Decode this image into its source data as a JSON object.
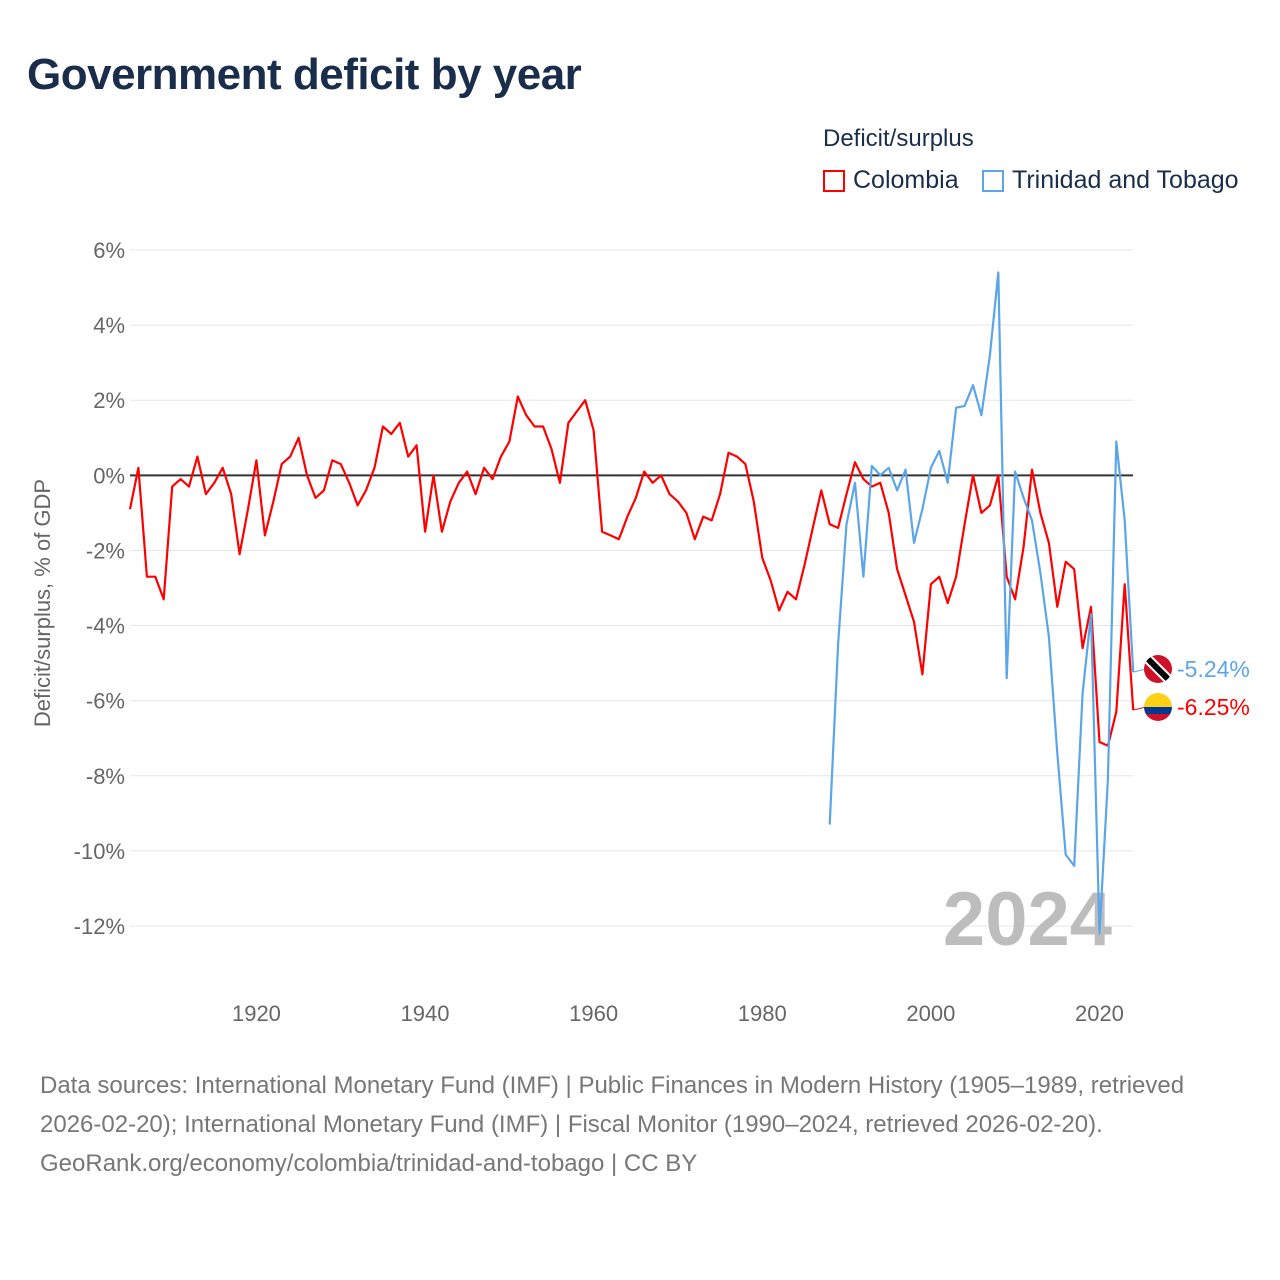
{
  "title": "Government deficit by year",
  "legend": {
    "title": "Deficit/surplus",
    "items": [
      {
        "name": "Colombia",
        "color": "#ff0000"
      },
      {
        "name": "Trinidad and Tobago",
        "color": "#5ba5e8"
      }
    ]
  },
  "chart_data": {
    "type": "line",
    "title": "Government deficit by year",
    "xlabel": "",
    "ylabel": "Deficit/surplus, % of GDP",
    "xlim": [
      1905,
      2024
    ],
    "ylim": [
      -12,
      6
    ],
    "grid": true,
    "legend_position": "top-right",
    "x_ticks": [
      1920,
      1940,
      1960,
      1980,
      2000,
      2020
    ],
    "x_tick_labels": [
      "1920",
      "1940",
      "1960",
      "1980",
      "2000",
      "2020"
    ],
    "y_ticks": [
      6,
      4,
      2,
      0,
      -2,
      -4,
      -6,
      -8,
      -10,
      -12
    ],
    "y_tick_labels": [
      "6%",
      "4%",
      "2%",
      "0%",
      "-2%",
      "-4%",
      "-6%",
      "-8%",
      "-10%",
      "-12%"
    ],
    "year_watermark": "2024",
    "series": [
      {
        "name": "Colombia",
        "color": "#ff0000",
        "start_year": 1905,
        "end_label": "-6.25%",
        "values": [
          -0.9,
          0.2,
          -2.7,
          -2.7,
          -3.3,
          -0.3,
          -0.1,
          -0.3,
          0.5,
          -0.5,
          -0.2,
          0.2,
          -0.5,
          -2.1,
          -0.9,
          0.4,
          -1.6,
          -0.7,
          0.3,
          0.5,
          1.0,
          0.0,
          -0.6,
          -0.4,
          0.4,
          0.3,
          -0.2,
          -0.8,
          -0.4,
          0.2,
          1.3,
          1.1,
          1.4,
          0.5,
          0.8,
          -1.5,
          0.0,
          -1.5,
          -0.7,
          -0.2,
          0.1,
          -0.5,
          0.2,
          -0.1,
          0.5,
          0.9,
          2.1,
          1.6,
          1.3,
          1.3,
          0.7,
          -0.2,
          1.4,
          1.7,
          2.0,
          1.2,
          -1.5,
          -1.6,
          -1.7,
          -1.1,
          -0.6,
          0.1,
          -0.2,
          0.0,
          -0.5,
          -0.7,
          -1.0,
          -1.7,
          -1.1,
          -1.2,
          -0.5,
          0.6,
          0.5,
          0.3,
          -0.7,
          -2.2,
          -2.8,
          -3.6,
          -3.1,
          -3.3,
          -2.4,
          -1.4,
          -0.4,
          -1.3,
          -1.4,
          -0.5,
          0.35,
          -0.1,
          -0.3,
          -0.2,
          -1.0,
          -2.5,
          -3.2,
          -3.9,
          -5.3,
          -2.9,
          -2.7,
          -3.4,
          -2.7,
          -1.3,
          0.0,
          -1.0,
          -0.8,
          0.0,
          -2.7,
          -3.3,
          -1.9,
          0.15,
          -1.0,
          -1.8,
          -3.5,
          -2.3,
          -2.5,
          -4.6,
          -3.5,
          -7.1,
          -7.2,
          -6.3,
          -2.9,
          -6.25
        ]
      },
      {
        "name": "Trinidad and Tobago",
        "color": "#5ba5e8",
        "start_year": 1988,
        "end_label": "-5.24%",
        "values": [
          -9.3,
          -4.5,
          -1.3,
          -0.2,
          -2.7,
          0.25,
          0.0,
          0.2,
          -0.4,
          0.15,
          -1.8,
          -0.9,
          0.2,
          0.65,
          -0.2,
          1.8,
          1.85,
          2.4,
          1.6,
          3.2,
          5.4,
          -5.4,
          0.1,
          -0.6,
          -1.2,
          -2.6,
          -4.3,
          -7.4,
          -10.1,
          -10.4,
          -5.8,
          -3.7,
          -12.2,
          -8.1,
          0.9,
          -1.2,
          -5.24
        ]
      }
    ]
  },
  "footer": {
    "sources": "Data sources: International Monetary Fund (IMF) | Public Finances in Modern History (1905–1989, retrieved 2026-02-20); International Monetary Fund (IMF) | Fiscal Monitor (1990–2024, retrieved 2026-02-20).",
    "credit": "GeoRank.org/economy/colombia/trinidad-and-tobago | CC BY"
  }
}
